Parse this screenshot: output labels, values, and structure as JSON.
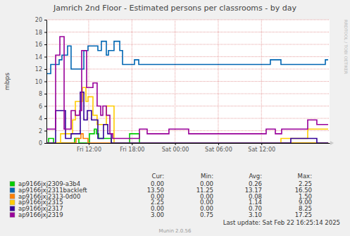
{
  "chart_data": {
    "type": "line",
    "title": "Jamrich 2nd Floor - Estimated persons per classrooms - by day",
    "y_label": "mbps",
    "watermark": "RRDTOOL / TOBI OETIKER",
    "last_update": "Last update: Sat Feb 22 16:25:14 2025",
    "version": "Munin 2.0.56",
    "line_style": "steps",
    "grid": true,
    "xlim": [
      6.13,
      45.47
    ],
    "xticks": [
      {
        "value": 12,
        "label": "Fri 12:00"
      },
      {
        "value": 18,
        "label": "Fri 18:00"
      },
      {
        "value": 24,
        "label": "Sat 00:00"
      },
      {
        "value": 30,
        "label": "Sat 06:00"
      },
      {
        "value": 36,
        "label": "Sat 12:00"
      }
    ],
    "ylim": [
      0,
      20
    ],
    "yticks": [
      0,
      2,
      4,
      6,
      8,
      10,
      12,
      14,
      16,
      18,
      20
    ],
    "legend_columns": [
      "Cur:",
      "Min:",
      "Avg:",
      "Max:"
    ],
    "series": [
      {
        "name": "ap9166jxj2309-a3b4",
        "color": "#00cc00",
        "x": [
          6.13,
          6.42,
          7.11,
          10.04,
          10.63,
          12.1,
          12.78,
          13.08,
          13.37,
          15.13,
          17.68,
          19.05,
          45.27
        ],
        "values": [
          0,
          0.75,
          0,
          0.75,
          0,
          1.5,
          2.25,
          1.5,
          0.75,
          0,
          1.5,
          0,
          0
        ],
        "stats": [
          "0.00",
          "0.00",
          "0.26",
          "2.25"
        ]
      },
      {
        "name": "ap9166jxj2311backleft",
        "color": "#0066b3",
        "x": [
          6.13,
          6.72,
          7.89,
          8.28,
          9.06,
          9.55,
          11.32,
          11.9,
          13.27,
          13.76,
          14.45,
          14.74,
          15.52,
          16.31,
          16.7,
          18.36,
          18.95,
          37.24,
          38.71,
          44.88,
          45.27
        ],
        "values": [
          11.25,
          12.75,
          13.5,
          14.25,
          15.75,
          12,
          15,
          15.75,
          15,
          16.5,
          14.25,
          15,
          16.5,
          15,
          12.75,
          13.5,
          12.75,
          13.5,
          12.75,
          13.5,
          13.5
        ],
        "stats": [
          "13.50",
          "11.25",
          "13.17",
          "16.50"
        ]
      },
      {
        "name": "ap9166jxj2313-0d00",
        "color": "#ff8000",
        "x": [
          6.13,
          10.24,
          10.92,
          11.22,
          11.9,
          45.27
        ],
        "values": [
          0,
          0.75,
          1.5,
          0.75,
          0,
          0
        ],
        "stats": [
          "0.00",
          "0.00",
          "0.08",
          "1.50"
        ]
      },
      {
        "name": "ap9166jxj2315",
        "color": "#ffcc00",
        "x": [
          6.13,
          8.09,
          9.75,
          10.14,
          11.12,
          11.61,
          11.9,
          12.59,
          13.17,
          14.45,
          15.52,
          38.71,
          42.43,
          45.27
        ],
        "values": [
          0,
          1.5,
          3.75,
          6.75,
          9,
          6.75,
          7.5,
          4.5,
          3,
          6,
          0,
          0.75,
          2.25,
          2.25
        ],
        "stats": [
          "2.25",
          "0.00",
          "1.14",
          "9.00"
        ]
      },
      {
        "name": "ap9166jxj2317",
        "color": "#330099",
        "x": [
          6.13,
          7.4,
          8.77,
          9.55,
          10.83,
          11.32,
          11.8,
          12.39,
          13.27,
          14.05,
          14.64,
          15.13,
          40.08,
          43.7,
          45.27
        ],
        "values": [
          0,
          5.25,
          0.75,
          1.5,
          8.25,
          3.75,
          5.25,
          3.75,
          0.75,
          3,
          1.5,
          0,
          0.75,
          0,
          0
        ],
        "stats": [
          "0.00",
          "0.00",
          "0.70",
          "8.25"
        ]
      },
      {
        "name": "ap9166jxj2319",
        "color": "#990099",
        "x": [
          6.13,
          7.4,
          7.99,
          8.58,
          9.55,
          10.14,
          10.73,
          11.02,
          11.71,
          12.59,
          13.17,
          13.66,
          13.96,
          14.45,
          14.94,
          15.33,
          19.05,
          20.12,
          23.15,
          25.89,
          36.66,
          37.93,
          38.81,
          42.43,
          43.7,
          45.27
        ],
        "values": [
          2.25,
          14.25,
          17.25,
          2.25,
          5.25,
          4.5,
          5.25,
          15,
          9,
          9.75,
          6,
          4.5,
          6,
          4.5,
          1.5,
          0.75,
          2.25,
          1.5,
          2.25,
          1.5,
          2.25,
          1.5,
          2.25,
          3.75,
          3,
          3
        ],
        "stats": [
          "3.00",
          "0.75",
          "3.10",
          "17.25"
        ]
      }
    ]
  }
}
